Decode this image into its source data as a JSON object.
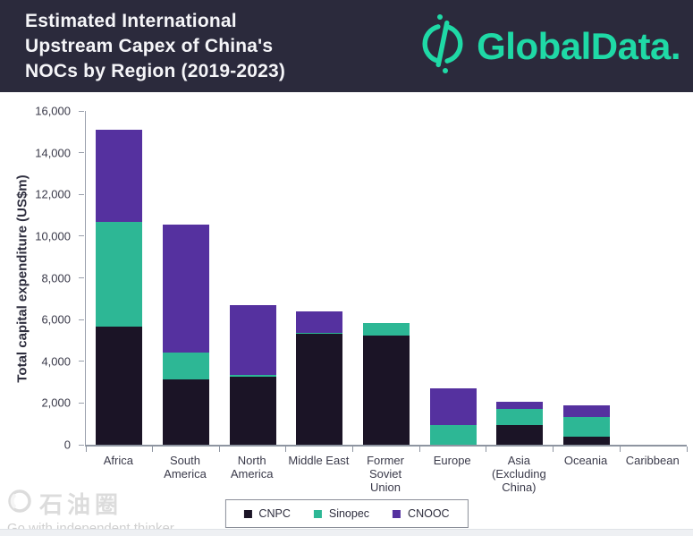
{
  "header": {
    "title": "Estimated International Upstream Capex of China's NOCs by Region (2019-2023)",
    "title_lines": [
      "Estimated International",
      "Upstream Capex of China's",
      "NOCs by Region (2019-2023)"
    ],
    "logo_text": "GlobalData.",
    "logo_color": "#1FD9A6",
    "background_color": "#2B2A3C"
  },
  "chart_data": {
    "type": "bar",
    "stacked": true,
    "title": "Estimated International Upstream Capex of China's NOCs by Region (2019-2023)",
    "categories": [
      "Africa",
      "South America",
      "North America",
      "Middle East",
      "Former Soviet Union",
      "Europe",
      "Asia (Excluding China)",
      "Oceania",
      "Caribbean"
    ],
    "category_label_lines": [
      [
        "Africa"
      ],
      [
        "South",
        "America"
      ],
      [
        "North",
        "America"
      ],
      [
        "Middle East"
      ],
      [
        "Former",
        "Soviet",
        "Union"
      ],
      [
        "Europe"
      ],
      [
        "Asia",
        "(Excluding",
        "China)"
      ],
      [
        "Oceania"
      ],
      [
        "Caribbean"
      ]
    ],
    "series": [
      {
        "name": "CNPC",
        "color": "#1B1426",
        "values": [
          5650,
          3150,
          3250,
          5300,
          5250,
          0,
          950,
          400,
          0
        ]
      },
      {
        "name": "Sinopec",
        "color": "#2DB795",
        "values": [
          5050,
          1250,
          100,
          50,
          600,
          950,
          750,
          950,
          0
        ]
      },
      {
        "name": "CNOOC",
        "color": "#55319F",
        "values": [
          4400,
          6150,
          3350,
          1050,
          0,
          1750,
          350,
          550,
          0
        ]
      }
    ],
    "xlabel": "",
    "ylabel": "Total capital expenditure (US$m)",
    "ylim": [
      0,
      16000
    ],
    "ytick_step": 2000,
    "ytick_labels": [
      "0",
      "2,000",
      "4,000",
      "6,000",
      "8,000",
      "10,000",
      "12,000",
      "14,000",
      "16,000"
    ],
    "grid": false,
    "legend_position": "bottom"
  },
  "watermark": {
    "brand": "石油圈",
    "tagline": "Go with independent thinker"
  }
}
